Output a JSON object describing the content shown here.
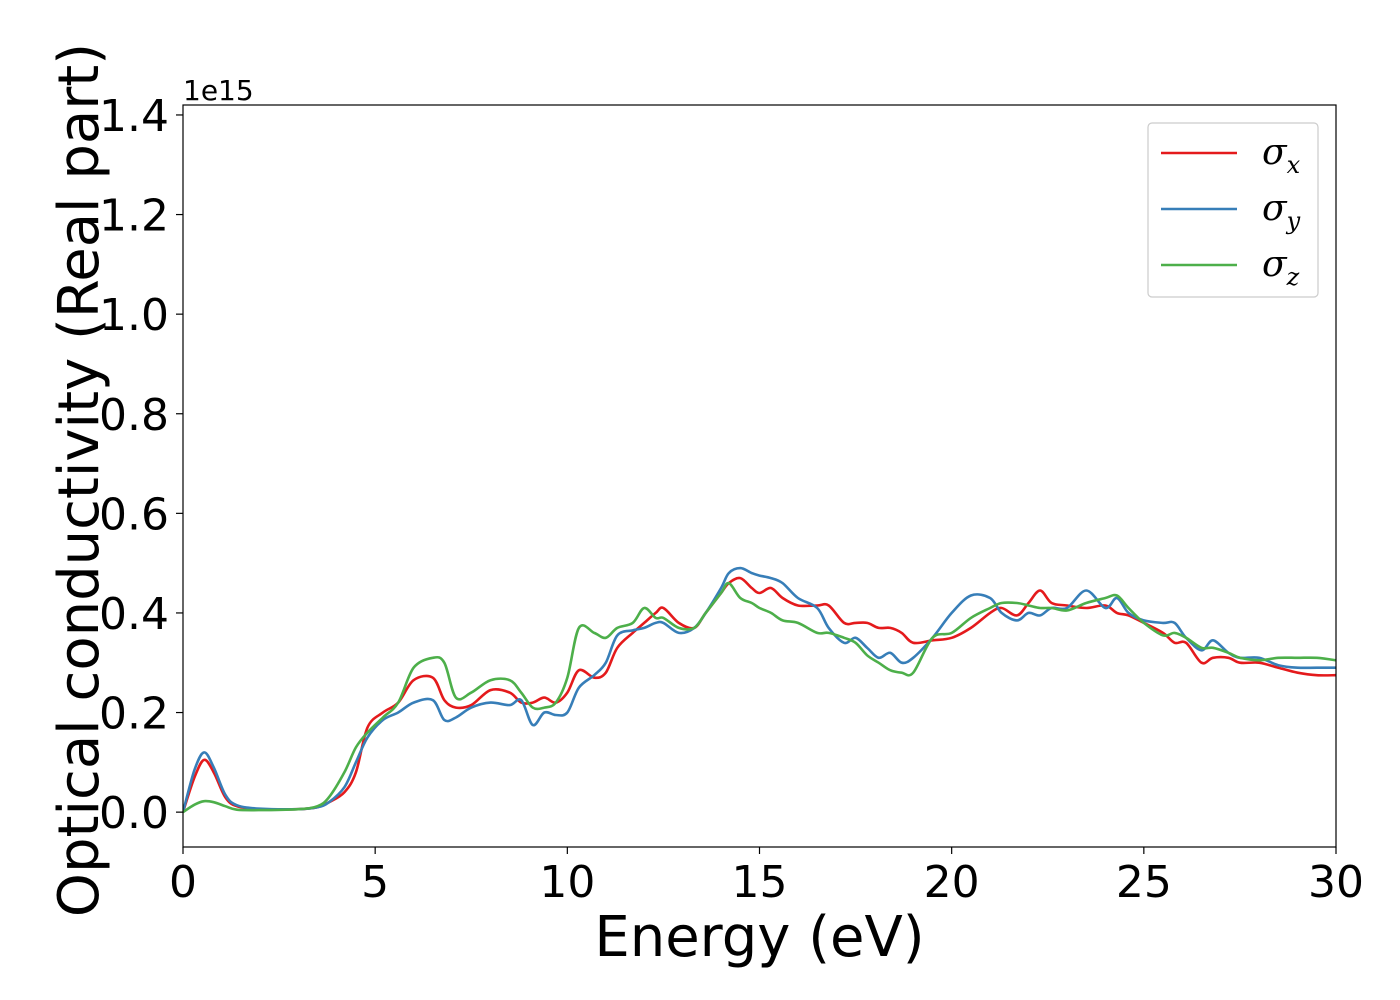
{
  "chart_data": {
    "type": "line",
    "xlabel": "Energy (eV)",
    "ylabel": "Optical conductivity (Real part)",
    "y_offset_label": "1e15",
    "xlim": [
      0,
      30
    ],
    "ylim": [
      -0.07,
      1.42
    ],
    "x_ticks": [
      0,
      5,
      10,
      15,
      20,
      25,
      30
    ],
    "x_tick_labels": [
      "0",
      "5",
      "10",
      "15",
      "20",
      "25",
      "30"
    ],
    "y_ticks": [
      0.0,
      0.2,
      0.4,
      0.6,
      0.8,
      1.0,
      1.2,
      1.4
    ],
    "y_tick_labels": [
      "0.0",
      "0.2",
      "0.4",
      "0.6",
      "0.8",
      "1.0",
      "1.2",
      "1.4"
    ],
    "grid": false,
    "legend_position": "top-right",
    "series": [
      {
        "name": "σ",
        "subscript": "x",
        "color": "#e41a1c",
        "x": [
          0,
          0.3,
          0.55,
          0.8,
          1.1,
          1.4,
          2,
          3,
          3.5,
          3.8,
          4.2,
          4.5,
          4.8,
          5.2,
          5.6,
          6,
          6.5,
          6.8,
          7.1,
          7.5,
          8,
          8.5,
          8.8,
          9.1,
          9.4,
          9.7,
          10,
          10.3,
          10.7,
          11,
          11.3,
          11.7,
          12,
          12.3,
          12.5,
          12.9,
          13.3,
          13.6,
          14,
          14.2,
          14.5,
          14.8,
          15,
          15.3,
          15.6,
          16,
          16.5,
          16.8,
          17.2,
          17.5,
          17.8,
          18.1,
          18.4,
          18.7,
          19,
          19.5,
          20,
          20.5,
          21,
          21.3,
          21.7,
          22,
          22.3,
          22.6,
          23,
          23.5,
          24,
          24.3,
          24.6,
          25,
          25.5,
          25.8,
          26.1,
          26.5,
          26.8,
          27.2,
          27.5,
          28,
          28.5,
          29,
          29.5,
          30
        ],
        "y": [
          0.0,
          0.07,
          0.105,
          0.08,
          0.03,
          0.012,
          0.006,
          0.006,
          0.01,
          0.02,
          0.04,
          0.08,
          0.17,
          0.2,
          0.22,
          0.265,
          0.27,
          0.225,
          0.21,
          0.215,
          0.245,
          0.24,
          0.22,
          0.22,
          0.23,
          0.22,
          0.24,
          0.285,
          0.27,
          0.28,
          0.33,
          0.36,
          0.38,
          0.4,
          0.41,
          0.38,
          0.37,
          0.4,
          0.44,
          0.46,
          0.47,
          0.45,
          0.44,
          0.45,
          0.43,
          0.415,
          0.415,
          0.415,
          0.38,
          0.38,
          0.38,
          0.37,
          0.37,
          0.36,
          0.34,
          0.345,
          0.35,
          0.37,
          0.4,
          0.41,
          0.395,
          0.42,
          0.445,
          0.42,
          0.415,
          0.41,
          0.415,
          0.4,
          0.395,
          0.38,
          0.36,
          0.34,
          0.34,
          0.3,
          0.31,
          0.31,
          0.3,
          0.3,
          0.29,
          0.28,
          0.275,
          0.275
        ]
      },
      {
        "name": "σ",
        "subscript": "y",
        "color": "#377eb8",
        "x": [
          0,
          0.3,
          0.55,
          0.8,
          1.1,
          1.4,
          2,
          3,
          3.5,
          3.8,
          4.2,
          4.5,
          4.8,
          5.2,
          5.6,
          6,
          6.5,
          6.8,
          7.1,
          7.5,
          8,
          8.5,
          8.8,
          9.1,
          9.4,
          9.7,
          10,
          10.3,
          10.7,
          11,
          11.3,
          11.7,
          12,
          12.3,
          12.5,
          12.9,
          13.3,
          13.6,
          14,
          14.2,
          14.5,
          14.8,
          15,
          15.3,
          15.6,
          16,
          16.5,
          16.8,
          17.2,
          17.5,
          17.8,
          18.1,
          18.4,
          18.7,
          19,
          19.5,
          20,
          20.5,
          21,
          21.3,
          21.7,
          22,
          22.3,
          22.6,
          23,
          23.5,
          24,
          24.3,
          24.6,
          25,
          25.5,
          25.8,
          26.1,
          26.5,
          26.8,
          27.2,
          27.5,
          28,
          28.5,
          29,
          29.5,
          30
        ],
        "y": [
          0.0,
          0.085,
          0.12,
          0.09,
          0.035,
          0.014,
          0.007,
          0.006,
          0.01,
          0.02,
          0.05,
          0.1,
          0.15,
          0.185,
          0.2,
          0.22,
          0.225,
          0.185,
          0.19,
          0.21,
          0.22,
          0.215,
          0.225,
          0.175,
          0.2,
          0.195,
          0.2,
          0.25,
          0.275,
          0.3,
          0.355,
          0.365,
          0.37,
          0.38,
          0.38,
          0.36,
          0.37,
          0.4,
          0.45,
          0.48,
          0.49,
          0.48,
          0.475,
          0.47,
          0.46,
          0.43,
          0.41,
          0.37,
          0.34,
          0.35,
          0.33,
          0.31,
          0.32,
          0.3,
          0.31,
          0.35,
          0.4,
          0.435,
          0.43,
          0.4,
          0.385,
          0.4,
          0.395,
          0.41,
          0.41,
          0.445,
          0.41,
          0.43,
          0.4,
          0.385,
          0.38,
          0.38,
          0.35,
          0.325,
          0.345,
          0.32,
          0.31,
          0.31,
          0.295,
          0.29,
          0.29,
          0.29
        ]
      },
      {
        "name": "σ",
        "subscript": "z",
        "color": "#4daf4a",
        "x": [
          0,
          0.3,
          0.55,
          0.8,
          1.1,
          1.4,
          2,
          3,
          3.5,
          3.8,
          4.2,
          4.5,
          4.8,
          5.2,
          5.6,
          6,
          6.5,
          6.8,
          7.1,
          7.5,
          8,
          8.5,
          8.8,
          9.1,
          9.4,
          9.7,
          10,
          10.3,
          10.7,
          11,
          11.3,
          11.7,
          12,
          12.3,
          12.5,
          12.9,
          13.3,
          13.6,
          14,
          14.2,
          14.5,
          14.8,
          15,
          15.3,
          15.6,
          16,
          16.5,
          16.8,
          17.2,
          17.5,
          17.8,
          18.1,
          18.4,
          18.7,
          19,
          19.5,
          20,
          20.5,
          21,
          21.3,
          21.7,
          22,
          22.3,
          22.6,
          23,
          23.5,
          24,
          24.3,
          24.6,
          25,
          25.5,
          25.8,
          26.1,
          26.5,
          26.8,
          27.2,
          27.5,
          28,
          28.5,
          29,
          29.5,
          30
        ],
        "y": [
          0.0,
          0.015,
          0.022,
          0.02,
          0.012,
          0.005,
          0.004,
          0.006,
          0.012,
          0.03,
          0.08,
          0.13,
          0.16,
          0.19,
          0.22,
          0.29,
          0.31,
          0.3,
          0.23,
          0.24,
          0.265,
          0.265,
          0.24,
          0.21,
          0.21,
          0.22,
          0.27,
          0.37,
          0.36,
          0.35,
          0.37,
          0.38,
          0.41,
          0.39,
          0.39,
          0.37,
          0.37,
          0.4,
          0.44,
          0.46,
          0.43,
          0.42,
          0.41,
          0.4,
          0.385,
          0.38,
          0.36,
          0.36,
          0.35,
          0.34,
          0.315,
          0.3,
          0.285,
          0.28,
          0.28,
          0.35,
          0.36,
          0.39,
          0.41,
          0.42,
          0.42,
          0.415,
          0.41,
          0.41,
          0.405,
          0.42,
          0.43,
          0.435,
          0.41,
          0.38,
          0.355,
          0.36,
          0.35,
          0.33,
          0.33,
          0.32,
          0.31,
          0.305,
          0.31,
          0.31,
          0.31,
          0.305
        ]
      }
    ]
  }
}
